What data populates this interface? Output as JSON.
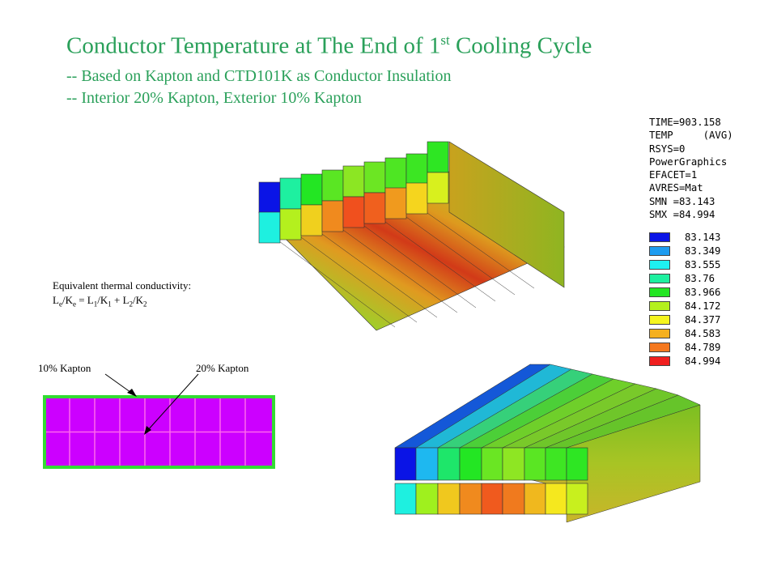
{
  "title": {
    "main_before": "Conductor Temperature at The End of 1",
    "main_sup": "st",
    "main_after": " Cooling Cycle",
    "line2": "-- Based on Kapton and CTD101K as Conductor Insulation",
    "line3": "-- Interior 20% Kapton, Exterior 10% Kapton"
  },
  "legend": {
    "lines": [
      "TIME=903.158",
      "TEMP     (AVG)",
      "RSYS=0",
      "PowerGraphics",
      "EFACET=1",
      "AVRES=Mat",
      "SMN =83.143",
      "SMX =84.994"
    ],
    "scale": [
      {
        "value": "83.143",
        "color": "#0a14e6"
      },
      {
        "value": "83.349",
        "color": "#1e9cf0"
      },
      {
        "value": "83.555",
        "color": "#1ef0f0"
      },
      {
        "value": "83.76",
        "color": "#1ef0a0"
      },
      {
        "value": "83.966",
        "color": "#23e623"
      },
      {
        "value": "84.172",
        "color": "#b4f01e"
      },
      {
        "value": "84.377",
        "color": "#f5f51e"
      },
      {
        "value": "84.583",
        "color": "#f5b01e"
      },
      {
        "value": "84.789",
        "color": "#f5781e"
      },
      {
        "value": "84.994",
        "color": "#f01e1e"
      }
    ]
  },
  "equation": {
    "heading": "Equivalent thermal conductivity:"
  },
  "labels": {
    "kapton_10": "10% Kapton",
    "kapton_20": "20% Kapton"
  },
  "colors": {
    "title": "#2aa05a",
    "cross_section_fill": "#cc00ff",
    "cross_section_border": "#33dd33",
    "cell_grid": "#ff66ee"
  }
}
